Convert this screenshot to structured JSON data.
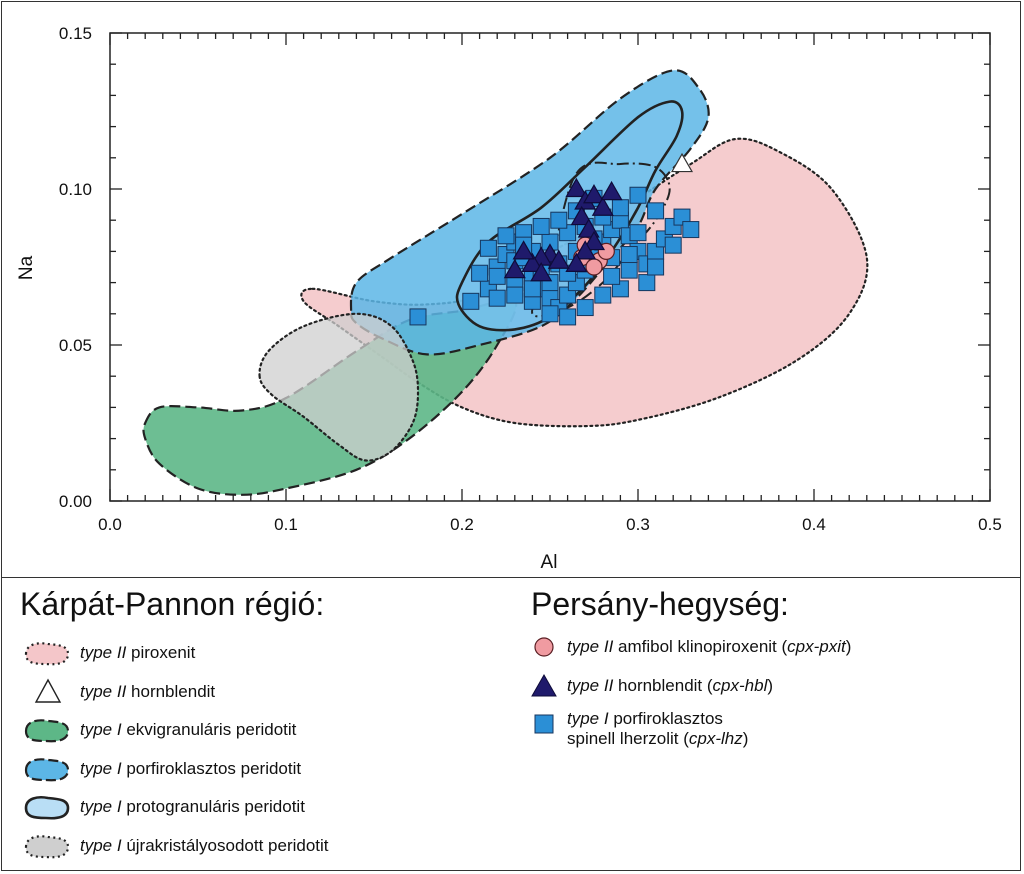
{
  "chart_data": {
    "type": "scatter",
    "xlabel": "Al",
    "ylabel": "Na",
    "xlim": [
      0.0,
      0.5
    ],
    "ylim": [
      0.0,
      0.15
    ],
    "x_ticks": [
      "0.0",
      "0.1",
      "0.2",
      "0.3",
      "0.4",
      "0.5"
    ],
    "y_ticks": [
      "0.00",
      "0.05",
      "0.10",
      "0.15"
    ],
    "x_tick_values": [
      0.0,
      0.1,
      0.2,
      0.3,
      0.4,
      0.5
    ],
    "y_tick_values": [
      0.0,
      0.05,
      0.1,
      0.15
    ],
    "grid": false,
    "fields": [
      {
        "key": "piroxenit",
        "fill": "#f4c6c9",
        "opacity": 0.9,
        "stroke": "dotted",
        "outline": [
          [
            0.115,
            0.068
          ],
          [
            0.15,
            0.064
          ],
          [
            0.18,
            0.063
          ],
          [
            0.21,
            0.066
          ],
          [
            0.245,
            0.078
          ],
          [
            0.27,
            0.086
          ],
          [
            0.3,
            0.097
          ],
          [
            0.33,
            0.108
          ],
          [
            0.355,
            0.116
          ],
          [
            0.38,
            0.112
          ],
          [
            0.41,
            0.1
          ],
          [
            0.43,
            0.078
          ],
          [
            0.42,
            0.06
          ],
          [
            0.39,
            0.045
          ],
          [
            0.345,
            0.033
          ],
          [
            0.3,
            0.026
          ],
          [
            0.27,
            0.024
          ],
          [
            0.23,
            0.025
          ],
          [
            0.2,
            0.03
          ],
          [
            0.175,
            0.038
          ],
          [
            0.155,
            0.046
          ],
          [
            0.13,
            0.056
          ],
          [
            0.11,
            0.064
          ]
        ]
      },
      {
        "key": "ekvigranularis",
        "fill": "#5db787",
        "opacity": 0.9,
        "stroke": "dashed",
        "outline": [
          [
            0.02,
            0.025
          ],
          [
            0.028,
            0.03
          ],
          [
            0.05,
            0.03
          ],
          [
            0.075,
            0.029
          ],
          [
            0.1,
            0.033
          ],
          [
            0.14,
            0.048
          ],
          [
            0.17,
            0.058
          ],
          [
            0.2,
            0.061
          ],
          [
            0.23,
            0.064
          ],
          [
            0.22,
            0.05
          ],
          [
            0.2,
            0.035
          ],
          [
            0.17,
            0.02
          ],
          [
            0.14,
            0.01
          ],
          [
            0.1,
            0.004
          ],
          [
            0.075,
            0.002
          ],
          [
            0.05,
            0.004
          ],
          [
            0.028,
            0.012
          ],
          [
            0.02,
            0.02
          ]
        ]
      },
      {
        "key": "porfiroklasztos",
        "fill": "#5cb6e6",
        "opacity": 0.85,
        "stroke": "dashed",
        "outline": [
          [
            0.137,
            0.061
          ],
          [
            0.14,
            0.07
          ],
          [
            0.16,
            0.078
          ],
          [
            0.2,
            0.092
          ],
          [
            0.25,
            0.11
          ],
          [
            0.29,
            0.129
          ],
          [
            0.32,
            0.138
          ],
          [
            0.335,
            0.132
          ],
          [
            0.34,
            0.123
          ],
          [
            0.33,
            0.113
          ],
          [
            0.31,
            0.1
          ],
          [
            0.3,
            0.088
          ],
          [
            0.285,
            0.078
          ],
          [
            0.265,
            0.065
          ],
          [
            0.245,
            0.056
          ],
          [
            0.21,
            0.05
          ],
          [
            0.18,
            0.047
          ],
          [
            0.155,
            0.052
          ],
          [
            0.14,
            0.057
          ]
        ]
      },
      {
        "key": "protogranularis",
        "fill": "#7cc3ec",
        "opacity": 0.7,
        "stroke": "solid",
        "outline": [
          [
            0.2,
            0.07
          ],
          [
            0.215,
            0.083
          ],
          [
            0.245,
            0.094
          ],
          [
            0.27,
            0.107
          ],
          [
            0.3,
            0.123
          ],
          [
            0.318,
            0.128
          ],
          [
            0.325,
            0.125
          ],
          [
            0.322,
            0.117
          ],
          [
            0.31,
            0.106
          ],
          [
            0.3,
            0.094
          ],
          [
            0.285,
            0.08
          ],
          [
            0.27,
            0.069
          ],
          [
            0.25,
            0.059
          ],
          [
            0.23,
            0.055
          ],
          [
            0.21,
            0.056
          ],
          [
            0.198,
            0.063
          ]
        ]
      },
      {
        "key": "ujrakristalyosodott",
        "fill": "#cfcfcf",
        "opacity": 0.75,
        "stroke": "dotted",
        "outline": [
          [
            0.085,
            0.04
          ],
          [
            0.09,
            0.048
          ],
          [
            0.11,
            0.056
          ],
          [
            0.14,
            0.06
          ],
          [
            0.16,
            0.056
          ],
          [
            0.172,
            0.045
          ],
          [
            0.175,
            0.035
          ],
          [
            0.172,
            0.025
          ],
          [
            0.16,
            0.016
          ],
          [
            0.145,
            0.013
          ],
          [
            0.13,
            0.018
          ],
          [
            0.11,
            0.027
          ],
          [
            0.092,
            0.034
          ]
        ]
      }
    ],
    "inner_outline": {
      "stroke": "dashdot",
      "outline": [
        [
          0.265,
          0.105
        ],
        [
          0.29,
          0.108
        ],
        [
          0.31,
          0.107
        ],
        [
          0.318,
          0.1
        ],
        [
          0.31,
          0.09
        ],
        [
          0.295,
          0.08
        ],
        [
          0.28,
          0.07
        ],
        [
          0.26,
          0.062
        ],
        [
          0.24,
          0.06
        ],
        [
          0.25,
          0.075
        ]
      ]
    },
    "series": [
      {
        "key": "cpx-lhz",
        "marker": "square",
        "color": "#2b8fd6",
        "points": [
          [
            0.175,
            0.059
          ],
          [
            0.205,
            0.064
          ],
          [
            0.215,
            0.068
          ],
          [
            0.21,
            0.073
          ],
          [
            0.22,
            0.075
          ],
          [
            0.225,
            0.079
          ],
          [
            0.23,
            0.083
          ],
          [
            0.235,
            0.086
          ],
          [
            0.24,
            0.072
          ],
          [
            0.245,
            0.068
          ],
          [
            0.25,
            0.065
          ],
          [
            0.255,
            0.062
          ],
          [
            0.26,
            0.066
          ],
          [
            0.265,
            0.07
          ],
          [
            0.27,
            0.074
          ],
          [
            0.275,
            0.079
          ],
          [
            0.28,
            0.083
          ],
          [
            0.285,
            0.087
          ],
          [
            0.29,
            0.09
          ],
          [
            0.295,
            0.085
          ],
          [
            0.3,
            0.08
          ],
          [
            0.305,
            0.076
          ],
          [
            0.31,
            0.08
          ],
          [
            0.315,
            0.084
          ],
          [
            0.32,
            0.088
          ],
          [
            0.325,
            0.091
          ],
          [
            0.33,
            0.087
          ],
          [
            0.31,
            0.093
          ],
          [
            0.3,
            0.098
          ],
          [
            0.29,
            0.094
          ],
          [
            0.28,
            0.091
          ],
          [
            0.27,
            0.088
          ],
          [
            0.26,
            0.086
          ],
          [
            0.25,
            0.083
          ],
          [
            0.24,
            0.08
          ],
          [
            0.23,
            0.077
          ],
          [
            0.22,
            0.072
          ],
          [
            0.215,
            0.081
          ],
          [
            0.225,
            0.085
          ],
          [
            0.235,
            0.078
          ],
          [
            0.245,
            0.074
          ],
          [
            0.255,
            0.076
          ],
          [
            0.265,
            0.08
          ],
          [
            0.275,
            0.084
          ],
          [
            0.285,
            0.078
          ],
          [
            0.295,
            0.074
          ],
          [
            0.305,
            0.07
          ],
          [
            0.29,
            0.068
          ],
          [
            0.28,
            0.066
          ],
          [
            0.27,
            0.062
          ],
          [
            0.26,
            0.059
          ],
          [
            0.25,
            0.06
          ],
          [
            0.24,
            0.064
          ],
          [
            0.23,
            0.07
          ],
          [
            0.22,
            0.065
          ],
          [
            0.265,
            0.093
          ],
          [
            0.275,
            0.097
          ],
          [
            0.255,
            0.09
          ],
          [
            0.245,
            0.088
          ],
          [
            0.235,
            0.082
          ],
          [
            0.3,
            0.086
          ],
          [
            0.31,
            0.075
          ],
          [
            0.32,
            0.082
          ],
          [
            0.285,
            0.072
          ],
          [
            0.295,
            0.079
          ],
          [
            0.27,
            0.076
          ],
          [
            0.26,
            0.073
          ],
          [
            0.25,
            0.07
          ],
          [
            0.24,
            0.068
          ],
          [
            0.23,
            0.066
          ]
        ]
      },
      {
        "key": "cpx-pxit",
        "marker": "circle",
        "color": "#f09ba1",
        "points": [
          [
            0.268,
            0.078
          ],
          [
            0.278,
            0.077
          ],
          [
            0.27,
            0.082
          ],
          [
            0.282,
            0.08
          ],
          [
            0.275,
            0.075
          ]
        ]
      },
      {
        "key": "cpx-hbl",
        "marker": "triangle",
        "color": "#1f1a6b",
        "points": [
          [
            0.265,
            0.1
          ],
          [
            0.27,
            0.096
          ],
          [
            0.275,
            0.098
          ],
          [
            0.28,
            0.094
          ],
          [
            0.285,
            0.099
          ],
          [
            0.268,
            0.091
          ],
          [
            0.272,
            0.087
          ],
          [
            0.275,
            0.083
          ],
          [
            0.27,
            0.08
          ],
          [
            0.265,
            0.076
          ],
          [
            0.25,
            0.079
          ],
          [
            0.245,
            0.078
          ],
          [
            0.24,
            0.076
          ],
          [
            0.235,
            0.08
          ],
          [
            0.23,
            0.074
          ],
          [
            0.245,
            0.073
          ],
          [
            0.255,
            0.077
          ]
        ]
      },
      {
        "key": "hornblendit-ref",
        "marker": "triangle-open",
        "color": "#ffffff",
        "points": [
          [
            0.325,
            0.108
          ]
        ]
      }
    ]
  },
  "legend": {
    "left_title": "Kárpát-Pannon régió:",
    "right_title": "Persány-hegység:",
    "left_items": [
      {
        "em": "type II",
        "text": " piroxenit",
        "symbol": "blob-pink"
      },
      {
        "em": "type II",
        "text": " hornblendit",
        "symbol": "triangle-open"
      },
      {
        "em": "type I",
        "text": " ekvigranuláris peridotit",
        "symbol": "blob-green"
      },
      {
        "em": "type I",
        "text": " porfiroklasztos peridotit",
        "symbol": "blob-blue"
      },
      {
        "em": "type I",
        "text": " protogranuláris peridotit",
        "symbol": "blob-lightblue"
      },
      {
        "em": "type I",
        "text": " újrakristályosodott peridotit",
        "symbol": "blob-grey"
      }
    ],
    "right_items": [
      {
        "em": "type II",
        "text": " amfibol klinopiroxenit (",
        "em2": "cpx-pxit",
        "tail": ")",
        "symbol": "circle-pink"
      },
      {
        "em": "type II",
        "text": " hornblendit (",
        "em2": "cpx-hbl",
        "tail": ")",
        "symbol": "triangle-navy"
      },
      {
        "em": "type I",
        "text": " porfiroklasztos",
        "line2": "spinell lherzolit (",
        "em2": "cpx-lhz",
        "tail": ")",
        "symbol": "square-blue"
      }
    ]
  },
  "colors": {
    "pink": "#f4c6c9",
    "green": "#5db787",
    "blue": "#5cb6e6",
    "lightblue": "#b9def5",
    "grey": "#cfcfcf",
    "navy": "#1f1a6b",
    "square": "#2b8fd6"
  }
}
